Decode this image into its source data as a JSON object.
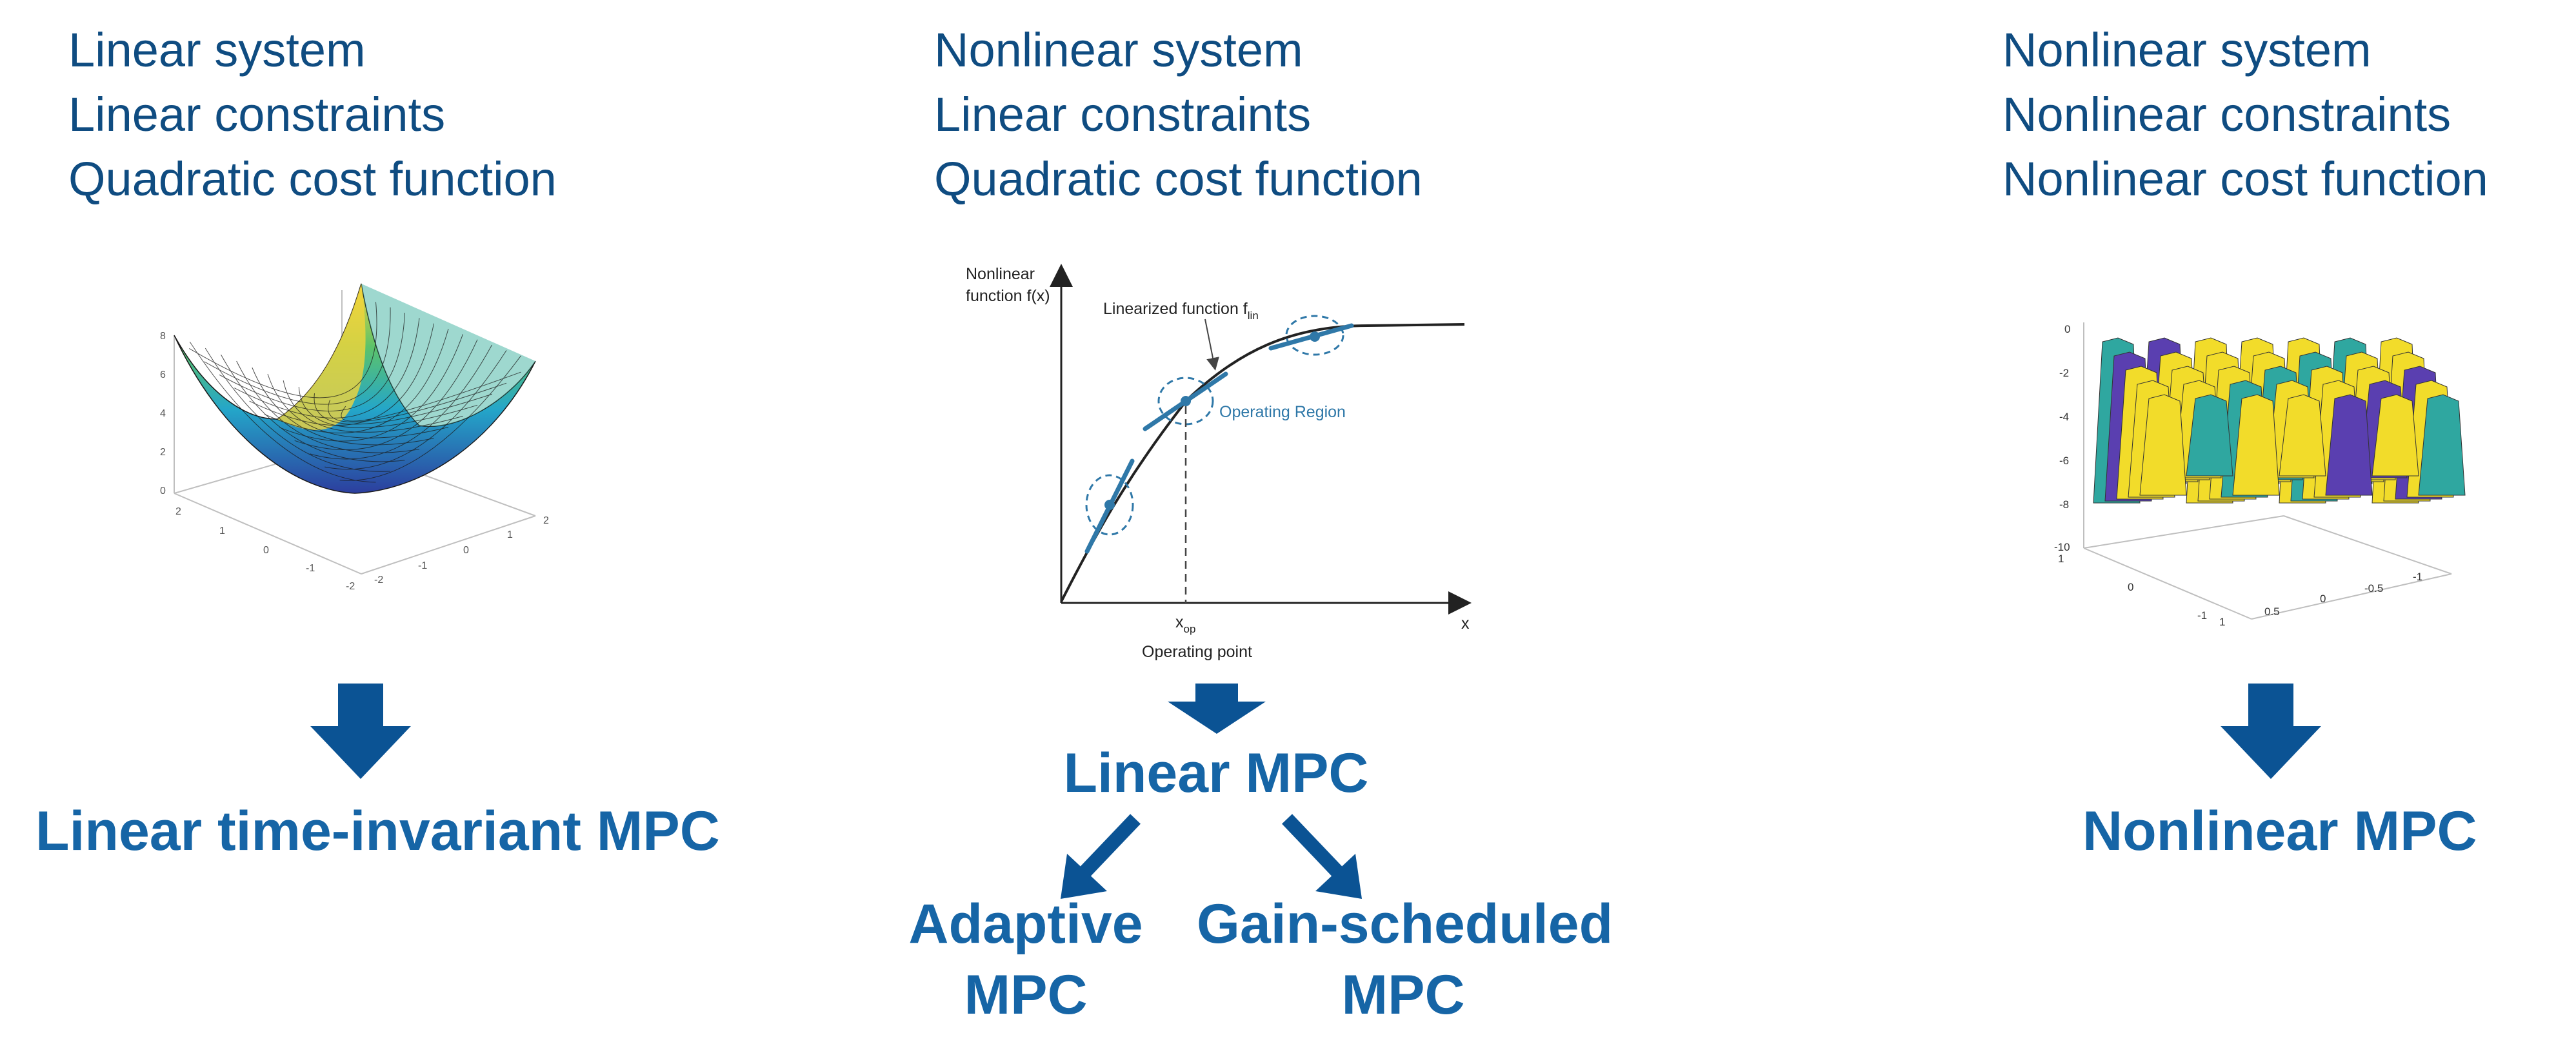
{
  "columns": [
    {
      "lines": [
        "Linear system",
        "Linear constraints",
        "Quadratic cost function"
      ],
      "result": "Linear time-invariant MPC",
      "figure": {
        "type": "surface-3d",
        "description_colors": [
          "#2c3e9e",
          "#24a6c9",
          "#5cc36a",
          "#f3d43b"
        ],
        "z_ticks": [
          "8",
          "6",
          "4",
          "2",
          "0"
        ],
        "x_ticks": [
          "2",
          "1",
          "0",
          "-1",
          "-2"
        ],
        "y_ticks": [
          "-2",
          "-1",
          "0",
          "1",
          "2"
        ]
      }
    },
    {
      "lines": [
        "Nonlinear system",
        "Linear constraints",
        "Quadratic cost function"
      ],
      "result": "Linear MPC",
      "figure": {
        "y_label_line1": "Nonlinear",
        "y_label_line2": "function f(x)",
        "linearized_label": "Linearized function f",
        "linearized_sub": "lin",
        "region_label": "Operating Region",
        "xop_label": "x",
        "xop_sub": "op",
        "x_axis_label": "x",
        "operating_point_label": "Operating point"
      },
      "branches": [
        {
          "line1": "Adaptive",
          "line2": "MPC"
        },
        {
          "line1": "Gain-scheduled",
          "line2": "MPC"
        }
      ]
    },
    {
      "lines": [
        "Nonlinear system",
        "Nonlinear constraints",
        "Nonlinear cost function"
      ],
      "result": "Nonlinear MPC",
      "figure": {
        "type": "surface-3d",
        "z_ticks": [
          "0",
          "-2",
          "-4",
          "-6",
          "-8",
          "-10"
        ],
        "x_ticks": [
          "1",
          "0",
          "-1"
        ],
        "y_ticks": [
          "1",
          "0.5",
          "0",
          "-0.5",
          "-1"
        ]
      }
    }
  ],
  "colors": {
    "heading_text": "#0f4c81",
    "result_text": "#1665a6",
    "arrow": "#0b5394",
    "curve": "#2f78a8"
  }
}
